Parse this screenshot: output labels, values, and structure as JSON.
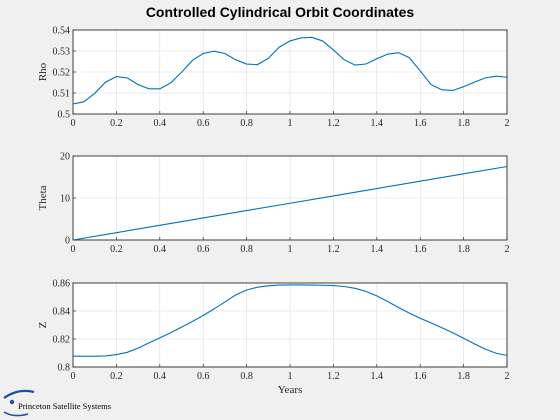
{
  "figure": {
    "title": "Controlled Cylindrical Orbit Coordinates",
    "footer_text": "Princeton Satellite Systems"
  },
  "colors": {
    "background": "#f0f0f0",
    "axes_bg": "#ffffff",
    "line": "#0072bd",
    "grid": "#dcdcdc",
    "logo_blue": "#1f4fa3"
  },
  "chart_data": [
    {
      "type": "line",
      "ylabel": "Rho",
      "xlabel": "",
      "xlim": [
        0,
        2
      ],
      "ylim": [
        0.5,
        0.54
      ],
      "xticks": [
        "0",
        "0.2",
        "0.4",
        "0.6",
        "0.8",
        "1",
        "1.2",
        "1.4",
        "1.6",
        "1.8",
        "2"
      ],
      "yticks": [
        "0.5",
        "0.51",
        "0.52",
        "0.53",
        "0.54"
      ],
      "grid": true,
      "series": [
        {
          "x": [
            0,
            0.05,
            0.1,
            0.15,
            0.2,
            0.25,
            0.3,
            0.35,
            0.4,
            0.45,
            0.5,
            0.55,
            0.6,
            0.65,
            0.7,
            0.75,
            0.8,
            0.85,
            0.9,
            0.95,
            1.0,
            1.05,
            1.1,
            1.15,
            1.2,
            1.25,
            1.3,
            1.35,
            1.4,
            1.45,
            1.5,
            1.55,
            1.6,
            1.65,
            1.7,
            1.75,
            1.8,
            1.85,
            1.9,
            1.95,
            2.0
          ],
          "y": [
            0.5048,
            0.5058,
            0.5098,
            0.5152,
            0.5178,
            0.5172,
            0.514,
            0.512,
            0.512,
            0.5148,
            0.5198,
            0.5255,
            0.5288,
            0.5299,
            0.5288,
            0.5258,
            0.5238,
            0.5235,
            0.5265,
            0.5318,
            0.5348,
            0.5362,
            0.5365,
            0.5348,
            0.5305,
            0.5258,
            0.5233,
            0.5238,
            0.5263,
            0.5285,
            0.5292,
            0.5268,
            0.5205,
            0.514,
            0.5115,
            0.5112,
            0.513,
            0.5152,
            0.5172,
            0.518,
            0.5175
          ]
        }
      ]
    },
    {
      "type": "line",
      "ylabel": "Theta",
      "xlabel": "",
      "xlim": [
        0,
        2
      ],
      "ylim": [
        0,
        20
      ],
      "xticks": [
        "0",
        "0.2",
        "0.4",
        "0.6",
        "0.8",
        "1",
        "1.2",
        "1.4",
        "1.6",
        "1.8",
        "2"
      ],
      "yticks": [
        "0",
        "10",
        "20"
      ],
      "grid": true,
      "series": [
        {
          "x": [
            0,
            0.2,
            0.4,
            0.6,
            0.8,
            1.0,
            1.2,
            1.4,
            1.6,
            1.8,
            2.0
          ],
          "y": [
            0,
            1.75,
            3.5,
            5.25,
            7.0,
            8.75,
            10.5,
            12.25,
            14.0,
            15.75,
            17.5
          ]
        }
      ]
    },
    {
      "type": "line",
      "ylabel": "Z",
      "xlabel": "Years",
      "xlim": [
        0,
        2
      ],
      "ylim": [
        0.8,
        0.86
      ],
      "xticks": [
        "0",
        "0.2",
        "0.4",
        "0.6",
        "0.8",
        "1",
        "1.2",
        "1.4",
        "1.6",
        "1.8",
        "2"
      ],
      "yticks": [
        "0.8",
        "0.82",
        "0.84",
        "0.86"
      ],
      "grid": true,
      "series": [
        {
          "x": [
            0,
            0.1,
            0.15,
            0.2,
            0.25,
            0.3,
            0.35,
            0.4,
            0.45,
            0.5,
            0.55,
            0.6,
            0.65,
            0.7,
            0.75,
            0.8,
            0.85,
            0.9,
            0.95,
            1.0,
            1.05,
            1.1,
            1.15,
            1.2,
            1.25,
            1.3,
            1.35,
            1.4,
            1.45,
            1.5,
            1.55,
            1.6,
            1.65,
            1.7,
            1.75,
            1.8,
            1.85,
            1.9,
            1.95,
            2.0
          ],
          "y": [
            0.8077,
            0.8077,
            0.8079,
            0.8088,
            0.8105,
            0.8135,
            0.8172,
            0.8208,
            0.8245,
            0.8285,
            0.8325,
            0.8368,
            0.8415,
            0.8465,
            0.8515,
            0.855,
            0.857,
            0.858,
            0.8585,
            0.8586,
            0.8586,
            0.8585,
            0.8584,
            0.8582,
            0.8575,
            0.8562,
            0.854,
            0.8508,
            0.8468,
            0.8425,
            0.8385,
            0.8348,
            0.8315,
            0.828,
            0.8245,
            0.8205,
            0.8165,
            0.8128,
            0.8098,
            0.8083
          ]
        }
      ]
    }
  ]
}
